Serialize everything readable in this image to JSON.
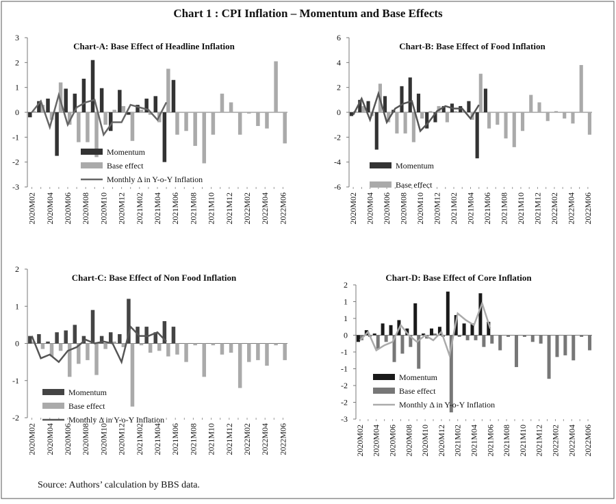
{
  "title": "Chart 1 : CPI Inflation – Momentum and Base Effects",
  "source": "Source: Authors’ calculation by BBS data.",
  "chart_data": [
    {
      "type": "bar",
      "title": "Chart-A: Base Effect of Headline Inflation",
      "categories": [
        "2020M02",
        null,
        "2020M04",
        null,
        "2020M06",
        null,
        "2020M08",
        null,
        "2020M10",
        null,
        "2020M12",
        null,
        "2021M02",
        null,
        "2021M04",
        null,
        "2021M06",
        null,
        "2021M08",
        null,
        "2021M10",
        null,
        "2021M12",
        null,
        "2022M02",
        null,
        "2022M04",
        null,
        "2022M06"
      ],
      "ylim": [
        -3,
        3
      ],
      "yticks": [
        -3,
        -2,
        -1,
        0,
        1,
        2,
        3
      ],
      "series": [
        {
          "name": "Momentum",
          "type": "bar",
          "color": "#333333",
          "values": [
            -0.2,
            0.45,
            0.55,
            -1.75,
            0.95,
            0.75,
            1.35,
            2.1,
            0.97,
            -0.75,
            0.9,
            -0.1,
            0.3,
            0.55,
            0.65,
            -2.0,
            1.3,
            null,
            null,
            null,
            null,
            null,
            null,
            null,
            null,
            null,
            null,
            null,
            null
          ]
        },
        {
          "name": "Base effect",
          "type": "bar",
          "color": "#aaaaaa",
          "values": [
            0.05,
            0.3,
            -0.3,
            1.2,
            -0.5,
            -1.2,
            -1.2,
            -1.8,
            -0.5,
            0.1,
            0.25,
            -1.15,
            0.1,
            -0.1,
            -0.4,
            1.75,
            -0.9,
            -0.75,
            -1.35,
            -2.05,
            -0.9,
            0.75,
            0.4,
            -0.9,
            -0.05,
            -0.55,
            -0.65,
            2.05,
            -1.25
          ]
        },
        {
          "name": "Monthly Δ in Y-o-Y Inflation",
          "type": "line",
          "color": "#666666",
          "values": [
            0,
            0.45,
            -0.6,
            0.7,
            -0.5,
            0.2,
            0.4,
            0.5,
            -0.9,
            -0.4,
            -0.4,
            0.3,
            0.2,
            0.1,
            -0.3,
            0.4,
            null,
            null,
            null,
            null,
            null,
            null,
            null,
            null,
            null,
            null,
            null,
            null,
            null
          ]
        }
      ]
    },
    {
      "type": "bar",
      "title": "Chart-B: Base Effect of Food Inflation",
      "categories": [
        "2020M02",
        null,
        "2020M04",
        null,
        "2020M06",
        null,
        "2020M08",
        null,
        "2020M10",
        null,
        "2020M12",
        null,
        "2021M02",
        null,
        "2021M04",
        null,
        "2021M06",
        null,
        "2021M08",
        null,
        "2021M10",
        null,
        "2021M12",
        null,
        "2022M02",
        null,
        "2022M04",
        null,
        "2022M06"
      ],
      "ylim": [
        -6,
        6
      ],
      "yticks": [
        -6,
        -4,
        -2,
        0,
        2,
        4,
        6
      ],
      "series": [
        {
          "name": "Momentum",
          "type": "bar",
          "color": "#333333",
          "values": [
            -0.3,
            1.0,
            0.9,
            -3.0,
            1.3,
            0.2,
            2.1,
            2.8,
            1.5,
            -1.3,
            -0.8,
            0.5,
            0.7,
            0.5,
            0.9,
            -3.7,
            1.9,
            null,
            null,
            null,
            null,
            null,
            null,
            null,
            null,
            null,
            null,
            null,
            null
          ]
        },
        {
          "name": "Base effect",
          "type": "bar",
          "color": "#aaaaaa",
          "values": [
            0.1,
            0.5,
            -0.3,
            2.3,
            -0.8,
            -1.7,
            -1.7,
            -2.4,
            -0.5,
            0.1,
            0.5,
            -0.8,
            0.1,
            0.1,
            -0.6,
            3.1,
            -1.3,
            -1.0,
            -2.1,
            -2.8,
            -1.5,
            1.4,
            0.8,
            -0.7,
            0.1,
            -0.5,
            -0.9,
            3.8,
            -1.8
          ]
        },
        {
          "type": "line",
          "color": "#555555",
          "values": [
            -0.2,
            1.1,
            -0.6,
            1.5,
            -0.8,
            0.3,
            0.7,
            0.9,
            -1.5,
            -0.8,
            0.1,
            0.5,
            0.3,
            0.3,
            -0.5,
            0.6,
            null,
            null,
            null,
            null,
            null,
            null,
            null,
            null,
            null,
            null,
            null,
            null,
            null
          ]
        }
      ]
    },
    {
      "type": "bar",
      "title": "Chart-C: Base Effect of Non Food Inflation",
      "categories": [
        "2020M02",
        null,
        "2020M04",
        null,
        "2020M06",
        null,
        "2020M08",
        null,
        "2020M10",
        null,
        "2020M12",
        null,
        "2021M02",
        null,
        "2021M04",
        null,
        "2021M06",
        null,
        "2021M08",
        null,
        "2021M10",
        null,
        "2021M12",
        null,
        "2022M02",
        null,
        "2022M04",
        null,
        "2022M06"
      ],
      "ylim": [
        -2,
        2
      ],
      "yticks": [
        -2,
        -1,
        0,
        1,
        2
      ],
      "series": [
        {
          "name": "Momentum",
          "type": "bar",
          "color": "#444444",
          "values": [
            0.2,
            0.25,
            0.05,
            0.3,
            0.35,
            0.5,
            0.2,
            0.9,
            0.2,
            0.3,
            0.25,
            1.2,
            0.45,
            0.45,
            0.3,
            0.6,
            0.45,
            null,
            null,
            null,
            null,
            null,
            null,
            null,
            null,
            null,
            null,
            null,
            null
          ]
        },
        {
          "name": "Base effect",
          "type": "bar",
          "color": "#aaaaaa",
          "values": [
            0.05,
            -0.15,
            -0.35,
            -0.2,
            -0.9,
            -0.55,
            -0.45,
            -0.85,
            -0.15,
            0.05,
            -0.1,
            -1.7,
            -0.05,
            -0.25,
            -0.2,
            -0.35,
            -0.3,
            -0.5,
            -0.05,
            -0.9,
            -0.05,
            -0.3,
            -0.25,
            -1.2,
            -0.5,
            -0.45,
            -0.6,
            -0.05,
            -0.45
          ]
        },
        {
          "name": "Monthly Δ in Y-o-Y Inflation",
          "type": "line",
          "color": "#555555",
          "values": [
            0.2,
            -0.4,
            -0.3,
            -0.5,
            -0.2,
            -0.1,
            0.1,
            0,
            0.05,
            0,
            -0.5,
            0.45,
            0.2,
            0.2,
            0.3,
            0.05,
            null,
            null,
            null,
            null,
            null,
            null,
            null,
            null,
            null,
            null,
            null,
            null,
            null
          ]
        }
      ]
    },
    {
      "type": "bar",
      "title": "Chart-D: Base Effect of Core Inflation",
      "categories": [
        "2020M02",
        null,
        "2020M04",
        null,
        "2020M06",
        null,
        "2020M08",
        null,
        "2020M10",
        null,
        "2020M12",
        null,
        "2021M02",
        null,
        "2021M04",
        null,
        "2021M06",
        null,
        "2021M08",
        null,
        "2021M10",
        null,
        "2021M12",
        null,
        "2022M02",
        null,
        "2022M04",
        null,
        "2022M06"
      ],
      "ylim": [
        -2.5,
        1.5
      ],
      "yticks": [
        {
          "value": -2.5,
          "label": "-3"
        },
        {
          "value": -2,
          "label": "-2"
        },
        {
          "value": -1.5,
          "label": "-2"
        },
        {
          "value": -1,
          "label": "-1"
        },
        {
          "value": -0.5,
          "label": "-1"
        },
        0,
        {
          "value": 0.5,
          "label": "1"
        },
        1,
        {
          "value": 1.5,
          "label": "2"
        }
      ],
      "series": [
        {
          "name": "Momentum",
          "type": "bar",
          "color": "#1a1a1a",
          "values": [
            -0.2,
            0.15,
            0.05,
            0.35,
            0.3,
            0.45,
            0.2,
            0.95,
            0.05,
            0.2,
            0.25,
            1.3,
            0.6,
            0.35,
            0.35,
            1.25,
            0.4,
            null,
            null,
            null,
            null,
            null,
            null,
            null,
            null,
            null,
            null,
            null,
            null
          ]
        },
        {
          "name": "Base effect",
          "type": "bar",
          "color": "#777777",
          "values": [
            -0.15,
            -0.05,
            -0.4,
            -0.2,
            -0.8,
            -0.55,
            -0.35,
            -1.0,
            -0.1,
            0.05,
            -0.05,
            -2.3,
            -0.05,
            -0.15,
            -0.15,
            -0.35,
            -0.25,
            -0.45,
            -0.05,
            -0.95,
            -0.05,
            -0.2,
            -0.25,
            -1.3,
            -0.65,
            -0.6,
            -0.75,
            -0.05,
            -0.45
          ]
        },
        {
          "name": "Monthly Δ in Y-o-Y Inflation",
          "type": "line",
          "color": "#aaaaaa",
          "values": [
            -0.15,
            0.1,
            -0.45,
            -0.3,
            -0.2,
            0.3,
            0,
            -0.2,
            0,
            -0.15,
            0.1,
            -0.6,
            0.65,
            0.45,
            0.3,
            0.95,
            0.2,
            null,
            null,
            null,
            null,
            null,
            null,
            null,
            null,
            null,
            null,
            null,
            null
          ]
        }
      ]
    }
  ]
}
